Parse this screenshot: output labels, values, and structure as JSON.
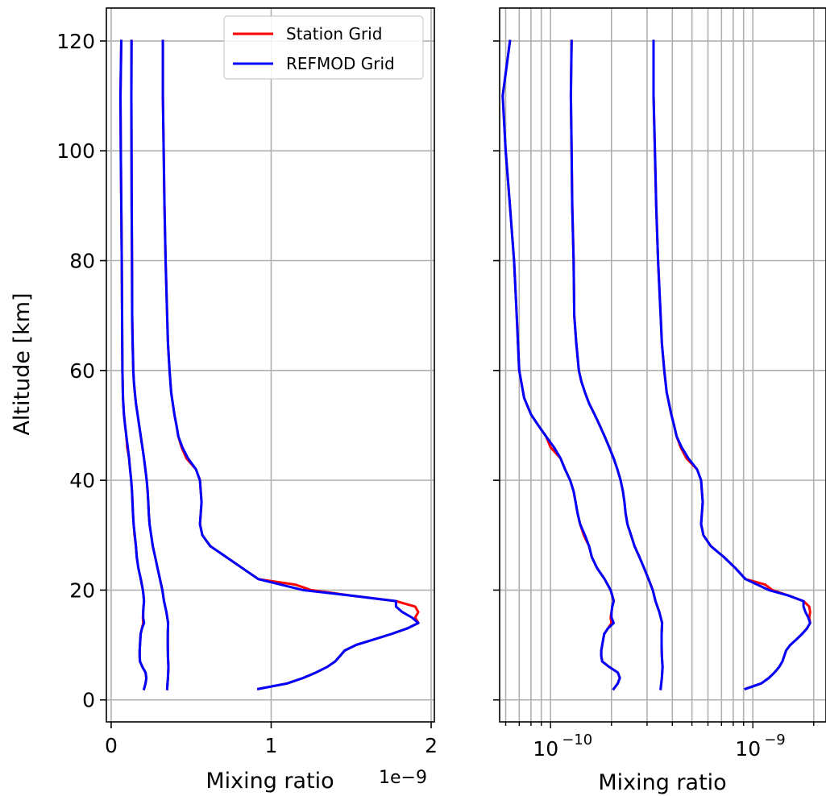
{
  "chart_data": [
    {
      "type": "line",
      "ylabel": "Altitude [km]",
      "xlabel": "Mixing ratio",
      "x_offset_label": "1e−9",
      "xscale": "linear",
      "xlim": [
        -0.03,
        2.02
      ],
      "ylim": [
        -4,
        126
      ],
      "xticks": [
        0,
        1,
        2
      ],
      "xtick_labels": [
        "0",
        "1",
        "2"
      ],
      "yticks": [
        0,
        20,
        40,
        60,
        80,
        100,
        120
      ],
      "ytick_labels": [
        "0",
        "20",
        "40",
        "60",
        "80",
        "100",
        "120"
      ],
      "grid": true,
      "legend": {
        "placement": "top-right",
        "entries": [
          {
            "label": "Station Grid",
            "color": "#ff0000"
          },
          {
            "label": "REFMOD Grid",
            "color": "#0000ff"
          }
        ]
      },
      "units_note": "x values in units of 1e-9",
      "series": [
        {
          "color": "#ff0000",
          "profile": 0,
          "layer": "station"
        },
        {
          "color": "#ff0000",
          "profile": 1,
          "layer": "station"
        },
        {
          "color": "#ff0000",
          "profile": 2,
          "layer": "station"
        },
        {
          "color": "#0000ff",
          "profile": 0,
          "layer": "refmod"
        },
        {
          "color": "#0000ff",
          "profile": 1,
          "layer": "refmod"
        },
        {
          "color": "#0000ff",
          "profile": 2,
          "layer": "refmod"
        }
      ]
    },
    {
      "type": "line",
      "xlabel": "Mixing ratio",
      "xscale": "log",
      "xlim": [
        5.6e-11,
        2.3e-09
      ],
      "ylim": [
        -4,
        126
      ],
      "xticks": [
        1e-10,
        1e-09
      ],
      "xtick_labels": [
        {
          "base": "10",
          "exp": "−10"
        },
        {
          "base": "10",
          "exp": "−9"
        }
      ],
      "grid": true,
      "series": [
        {
          "color": "#ff0000",
          "profile": 0,
          "layer": "station"
        },
        {
          "color": "#ff0000",
          "profile": 1,
          "layer": "station"
        },
        {
          "color": "#ff0000",
          "profile": 2,
          "layer": "station"
        },
        {
          "color": "#0000ff",
          "profile": 0,
          "layer": "refmod"
        },
        {
          "color": "#0000ff",
          "profile": 1,
          "layer": "refmod"
        },
        {
          "color": "#0000ff",
          "profile": 2,
          "layer": "refmod"
        }
      ]
    }
  ],
  "profiles_1e9": {
    "refmod": [
      {
        "alt": [
          2,
          3,
          4,
          5,
          6,
          7,
          8,
          9,
          10,
          11,
          12,
          13,
          14,
          15,
          16,
          17,
          18,
          19,
          20,
          22,
          24,
          26,
          28,
          30,
          32,
          34,
          36,
          38,
          40,
          42,
          44,
          46,
          48,
          50,
          52,
          55,
          60,
          70,
          80,
          90,
          100,
          110,
          120
        ],
        "x": [
          0.205,
          0.215,
          0.22,
          0.215,
          0.195,
          0.18,
          0.178,
          0.178,
          0.18,
          0.182,
          0.184,
          0.192,
          0.205,
          0.2,
          0.2,
          0.202,
          0.205,
          0.202,
          0.198,
          0.185,
          0.17,
          0.16,
          0.155,
          0.148,
          0.14,
          0.136,
          0.133,
          0.13,
          0.125,
          0.118,
          0.112,
          0.104,
          0.095,
          0.087,
          0.08,
          0.074,
          0.07,
          0.068,
          0.066,
          0.063,
          0.06,
          0.058,
          0.063
        ]
      },
      {
        "alt": [
          2,
          4,
          6,
          8,
          10,
          12,
          14,
          16,
          18,
          20,
          22,
          24,
          26,
          28,
          30,
          32,
          34,
          36,
          38,
          40,
          42,
          44,
          46,
          48,
          50,
          52,
          54,
          56,
          58,
          60,
          65,
          70,
          80,
          90,
          100,
          110,
          120
        ],
        "x": [
          0.35,
          0.355,
          0.358,
          0.355,
          0.354,
          0.354,
          0.356,
          0.345,
          0.33,
          0.32,
          0.305,
          0.29,
          0.275,
          0.26,
          0.25,
          0.24,
          0.235,
          0.232,
          0.228,
          0.222,
          0.214,
          0.205,
          0.195,
          0.185,
          0.175,
          0.165,
          0.155,
          0.148,
          0.142,
          0.138,
          0.134,
          0.131,
          0.13,
          0.128,
          0.127,
          0.126,
          0.127
        ]
      },
      {
        "alt": [
          2,
          3,
          4,
          5,
          6,
          7,
          8,
          9,
          10,
          11,
          12,
          13,
          14,
          15,
          16,
          17,
          18,
          19,
          20,
          22,
          24,
          26,
          28,
          30,
          32,
          34,
          36,
          38,
          40,
          42,
          44,
          46,
          48,
          50,
          52,
          54,
          56,
          58,
          60,
          65,
          70,
          80,
          90,
          100,
          110,
          120
        ],
        "x": [
          0.92,
          1.1,
          1.2,
          1.28,
          1.35,
          1.4,
          1.43,
          1.46,
          1.53,
          1.64,
          1.75,
          1.85,
          1.92,
          1.88,
          1.82,
          1.78,
          1.78,
          1.5,
          1.2,
          0.92,
          0.82,
          0.72,
          0.62,
          0.57,
          0.555,
          0.56,
          0.565,
          0.56,
          0.555,
          0.53,
          0.48,
          0.445,
          0.42,
          0.408,
          0.395,
          0.385,
          0.375,
          0.37,
          0.365,
          0.355,
          0.35,
          0.34,
          0.333,
          0.328,
          0.323,
          0.323
        ]
      }
    ],
    "station": [
      {
        "alt": [
          2,
          3,
          4,
          5,
          6,
          7,
          8,
          9,
          10,
          11,
          12,
          13,
          14,
          15,
          16,
          17,
          18,
          19,
          20,
          22,
          24,
          26,
          28,
          30,
          32,
          34,
          36,
          38,
          40,
          42,
          44,
          46,
          48,
          50,
          52,
          55,
          60,
          70,
          80,
          90,
          100,
          110,
          120
        ],
        "x": [
          0.205,
          0.215,
          0.22,
          0.215,
          0.195,
          0.18,
          0.178,
          0.178,
          0.18,
          0.182,
          0.184,
          0.192,
          0.2,
          0.198,
          0.2,
          0.202,
          0.205,
          0.202,
          0.198,
          0.185,
          0.17,
          0.16,
          0.155,
          0.146,
          0.14,
          0.136,
          0.133,
          0.13,
          0.125,
          0.118,
          0.112,
          0.1,
          0.095,
          0.087,
          0.08,
          0.074,
          0.07,
          0.068,
          0.066,
          0.063,
          0.06,
          0.058,
          0.063
        ]
      },
      {
        "alt": [
          2,
          4,
          6,
          8,
          10,
          12,
          14,
          16,
          18,
          20,
          22,
          24,
          26,
          28,
          30,
          32,
          34,
          36,
          38,
          40,
          42,
          44,
          46,
          48,
          50,
          52,
          54,
          56,
          58,
          60,
          65,
          70,
          80,
          90,
          100,
          110,
          120
        ],
        "x": [
          0.35,
          0.355,
          0.358,
          0.355,
          0.354,
          0.354,
          0.356,
          0.345,
          0.33,
          0.32,
          0.305,
          0.29,
          0.275,
          0.26,
          0.25,
          0.24,
          0.235,
          0.232,
          0.228,
          0.222,
          0.214,
          0.205,
          0.195,
          0.185,
          0.175,
          0.165,
          0.155,
          0.148,
          0.142,
          0.138,
          0.134,
          0.131,
          0.13,
          0.128,
          0.127,
          0.126,
          0.127
        ]
      },
      {
        "alt": [
          2,
          3,
          4,
          5,
          6,
          7,
          8,
          9,
          10,
          11,
          12,
          13,
          14,
          15,
          16,
          17,
          18,
          19,
          20,
          21,
          22,
          24,
          26,
          28,
          30,
          32,
          34,
          36,
          38,
          40,
          42,
          44,
          46,
          48,
          50,
          52,
          54,
          56,
          58,
          60,
          65,
          70,
          80,
          90,
          100,
          110,
          120
        ],
        "x": [
          0.92,
          1.1,
          1.2,
          1.28,
          1.35,
          1.4,
          1.43,
          1.46,
          1.53,
          1.64,
          1.75,
          1.85,
          1.92,
          1.9,
          1.92,
          1.9,
          1.78,
          1.5,
          1.25,
          1.15,
          0.92,
          0.82,
          0.72,
          0.62,
          0.57,
          0.555,
          0.56,
          0.565,
          0.56,
          0.555,
          0.53,
          0.47,
          0.44,
          0.42,
          0.408,
          0.395,
          0.385,
          0.375,
          0.37,
          0.365,
          0.355,
          0.35,
          0.34,
          0.333,
          0.328,
          0.323,
          0.323
        ]
      }
    ]
  }
}
